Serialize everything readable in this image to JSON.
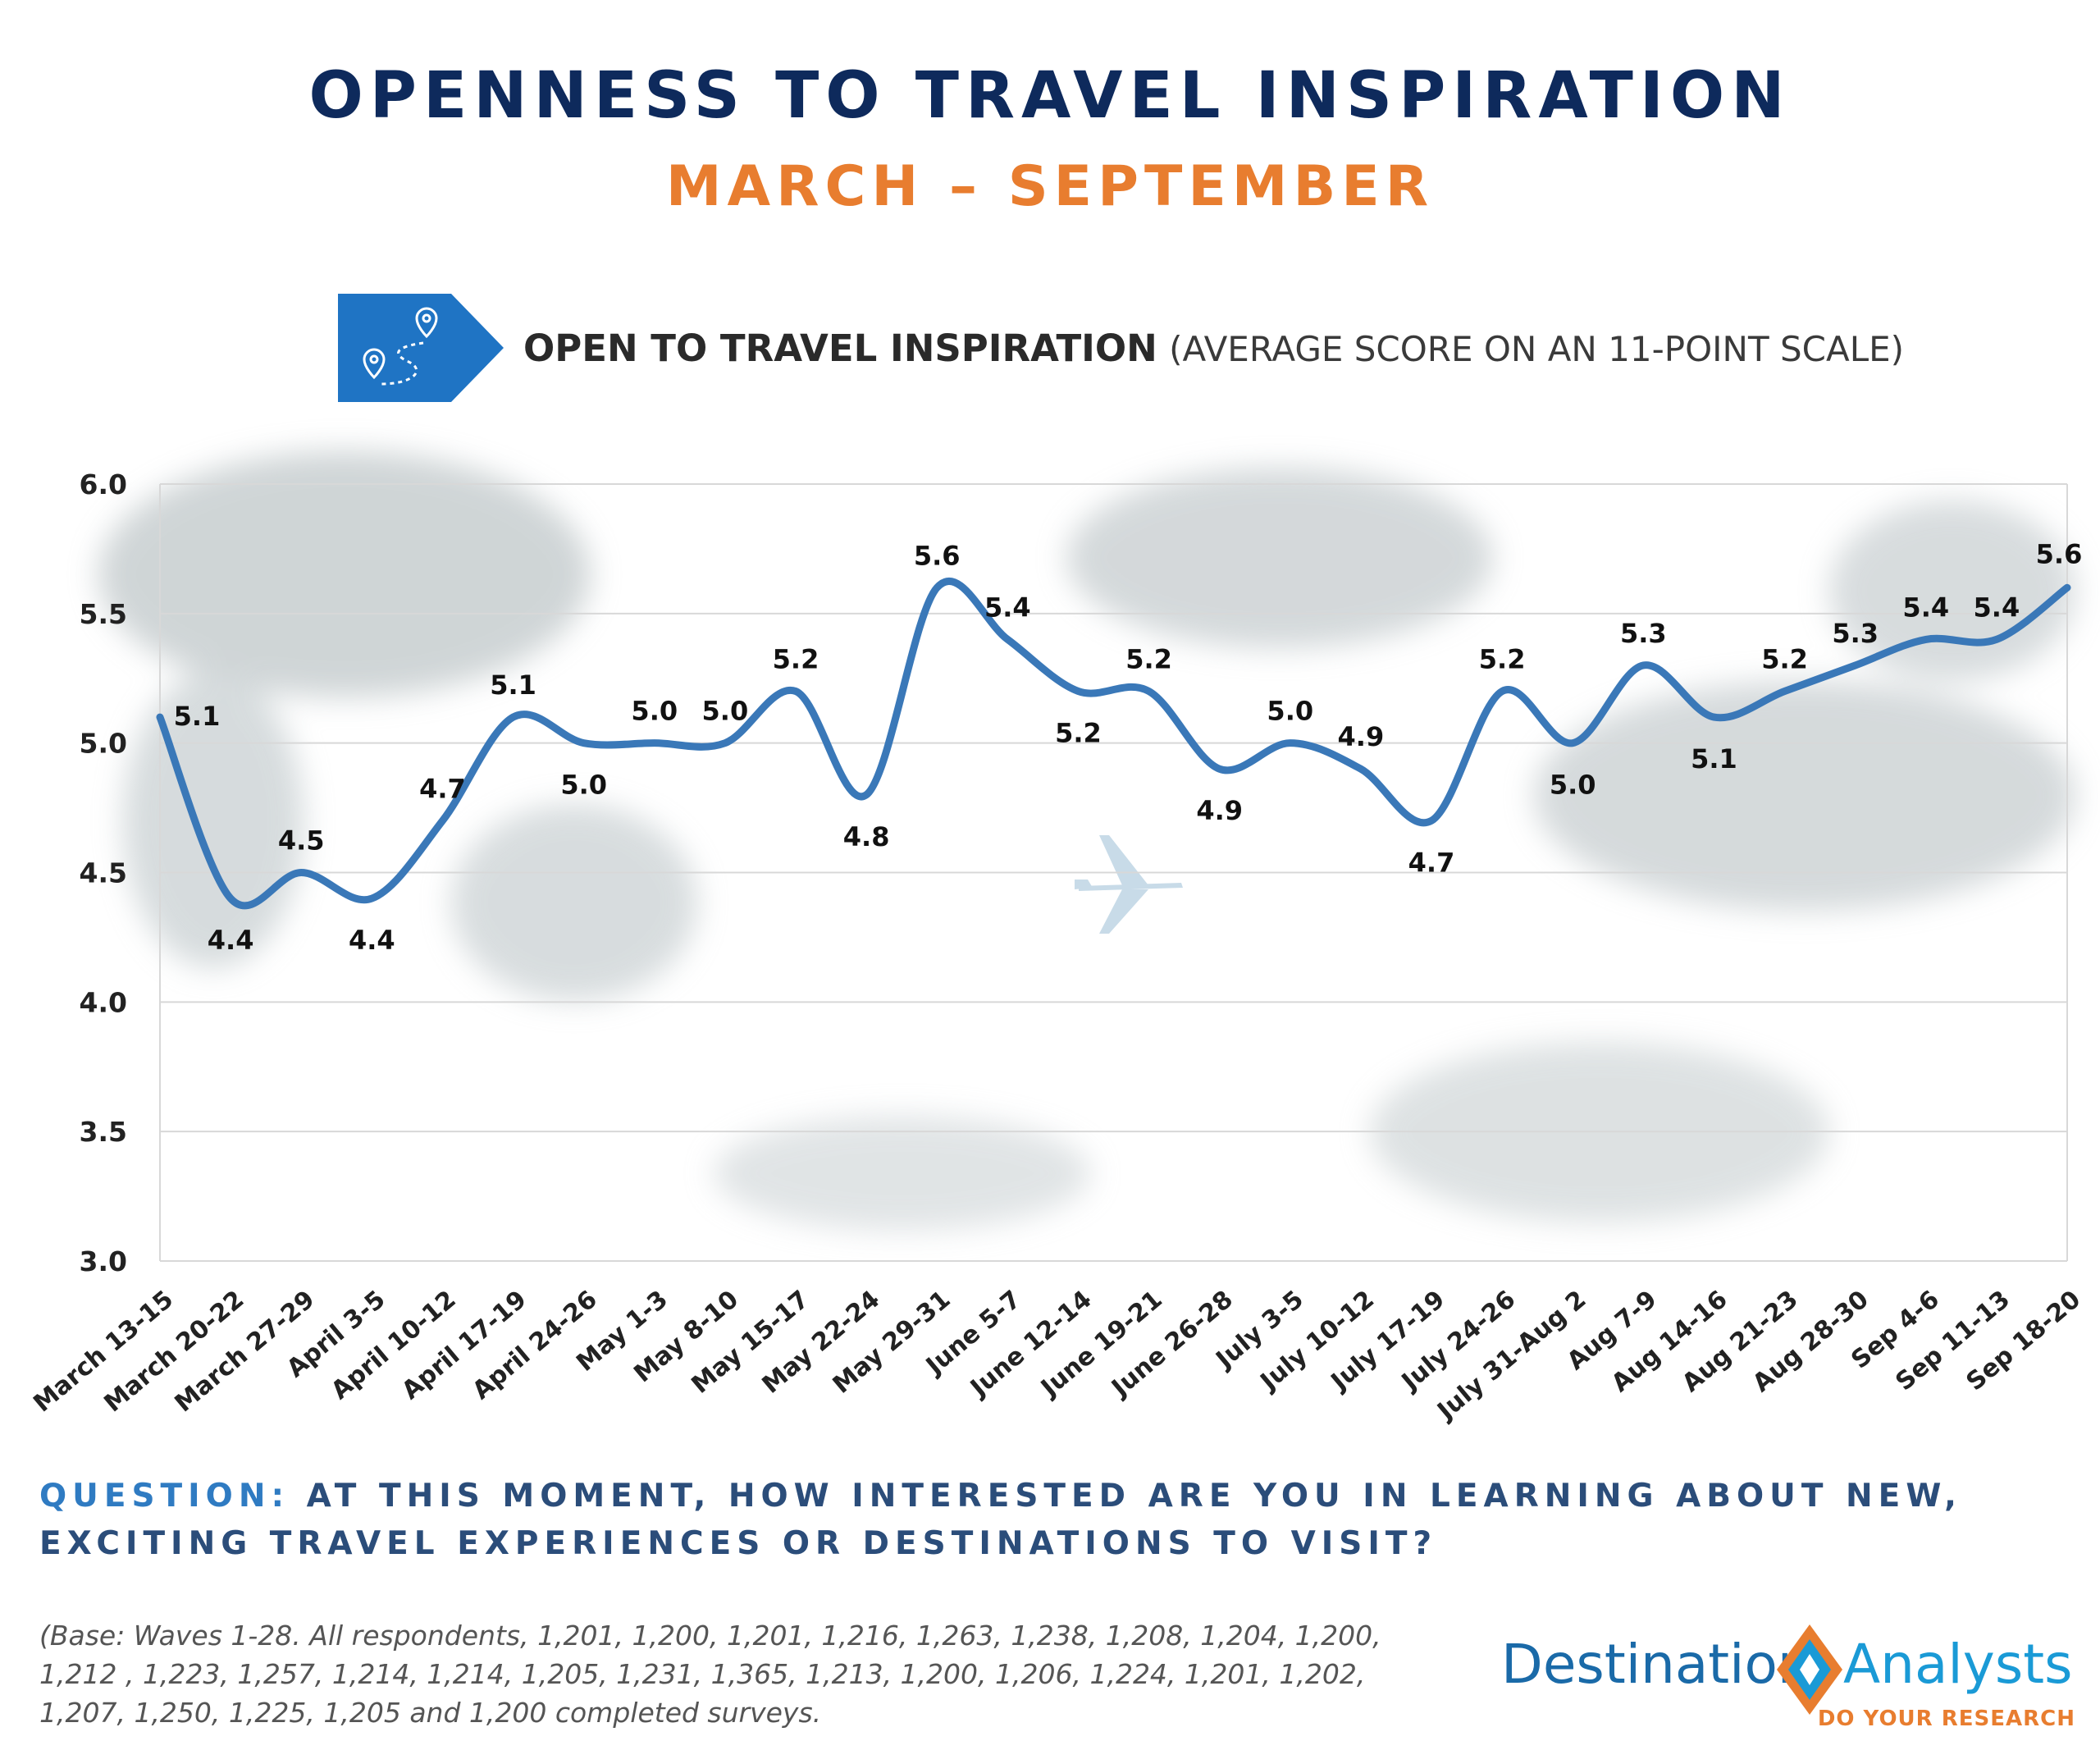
{
  "header": {
    "title": "OPENNESS TO TRAVEL INSPIRATION",
    "subtitle": "MARCH – SEPTEMBER"
  },
  "chart_heading": {
    "bold": "OPEN TO TRAVEL INSPIRATION",
    "rest": "(AVERAGE SCORE ON AN 11-POINT SCALE)",
    "icon": "map-route-pins-icon"
  },
  "chart_data": {
    "type": "line",
    "title": "",
    "xlabel": "",
    "ylabel": "",
    "ylim": [
      3.0,
      6.0
    ],
    "yticks": [
      "6.0",
      "5.5",
      "5.0",
      "4.5",
      "4.0",
      "3.5",
      "3.0"
    ],
    "grid": true,
    "line_color": "#3a78b8",
    "categories": [
      "March 13-15",
      "March 20-22",
      "March 27-29",
      "April 3-5",
      "April 10-12",
      "April 17-19",
      "April 24-26",
      "May 1-3",
      "May 8-10",
      "May 15-17",
      "May 22-24",
      "May 29-31",
      "June 5-7",
      "June 12-14",
      "June 19-21",
      "June 26-28",
      "July 3-5",
      "July 10-12",
      "July 17-19",
      "July 24-26",
      "July 31-Aug 2",
      "Aug 7-9",
      "Aug 14-16",
      "Aug 21-23",
      "Aug 28-30",
      "Sep 4-6",
      "Sep 11-13",
      "Sep 18-20"
    ],
    "values": [
      5.1,
      4.4,
      4.5,
      4.4,
      4.7,
      5.1,
      5.0,
      5.0,
      5.0,
      5.2,
      4.8,
      5.6,
      5.4,
      5.2,
      5.2,
      4.9,
      5.0,
      4.9,
      4.7,
      5.2,
      5.0,
      5.3,
      5.1,
      5.2,
      5.3,
      5.4,
      5.4,
      5.6
    ],
    "labels": [
      "5.1",
      "4.4",
      "4.5",
      "4.4",
      "4.7",
      "5.1",
      "5.0",
      "5.0",
      "5.0",
      "5.2",
      "4.8",
      "5.6",
      "5.4",
      "5.2",
      "5.2",
      "4.9",
      "5.0",
      "4.9",
      "4.7",
      "5.2",
      "5.0",
      "5.3",
      "5.1",
      "5.2",
      "5.3",
      "5.4",
      "5.4",
      "5.6"
    ]
  },
  "question": {
    "label": "QUESTION:",
    "text": "AT THIS MOMENT, HOW INTERESTED ARE YOU IN LEARNING ABOUT NEW, EXCITING TRAVEL EXPERIENCES OR DESTINATIONS TO VISIT?"
  },
  "base_note": "(Base: Waves 1-28.  All respondents, 1,201, 1,200, 1,201, 1,216, 1,263, 1,238, 1,208, 1,204, 1,200, 1,212 , 1,223, 1,257, 1,214, 1,214, 1,205, 1,231, 1,365, 1,213, 1,200, 1,206, 1,224, 1,201, 1,202, 1,207, 1,250, 1,225, 1,205 and 1,200 completed surveys.",
  "logo": {
    "word1": "Destination",
    "word2": "Analysts",
    "tagline": "DO YOUR RESEARCH",
    "colors": {
      "blue": "#1a6aa8",
      "orange": "#e87d2f"
    }
  }
}
